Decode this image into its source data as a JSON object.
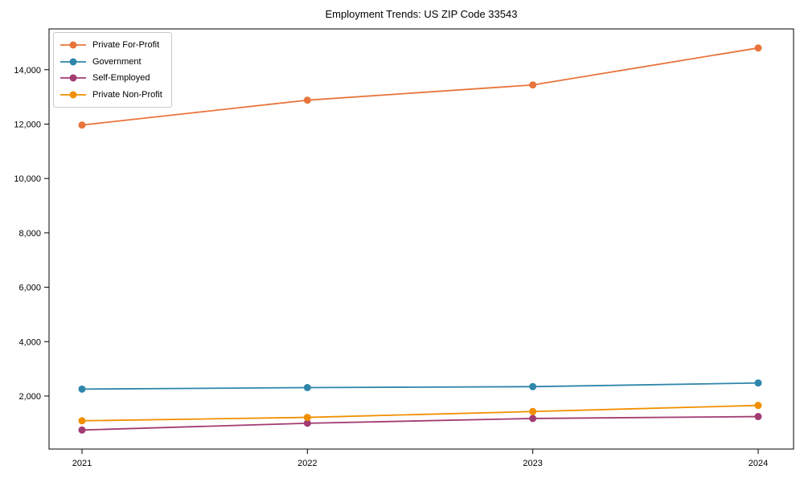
{
  "chart_data": {
    "type": "line",
    "title": "Employment Trends: US ZIP Code 33543",
    "categories": [
      "2021",
      "2022",
      "2023",
      "2024"
    ],
    "series": [
      {
        "name": "Private For-Profit",
        "color": "#E8743B",
        "values": [
          11965,
          12880,
          13440,
          14800
        ]
      },
      {
        "name": "Government",
        "color": "#2E86AB",
        "values": [
          2255,
          2310,
          2345,
          2480
        ]
      },
      {
        "name": "Self-Employed",
        "color": "#A23B72",
        "values": [
          750,
          1000,
          1175,
          1245
        ]
      },
      {
        "name": "Private Non-Profit",
        "color": "#F18F01",
        "values": [
          1090,
          1215,
          1430,
          1655
        ]
      }
    ],
    "xlabel": "",
    "ylabel": "",
    "ylim": [
      50,
      15500
    ],
    "yticks": {
      "values": [
        2000,
        4000,
        6000,
        8000,
        10000,
        12000,
        14000
      ],
      "labels": [
        "2,000",
        "4,000",
        "6,000",
        "8,000",
        "10,000",
        "12,000",
        "14,000"
      ]
    },
    "grid": false,
    "legend_position": "upper-left",
    "marker": "circle",
    "axis_color": "#000000",
    "background": "#ffffff"
  }
}
